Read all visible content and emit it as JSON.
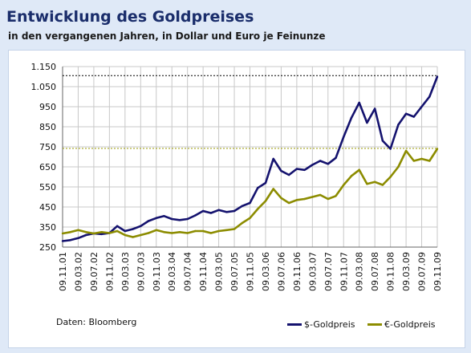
{
  "title": "Entwicklung des Goldpreises",
  "subtitle": "in den vergangenen Jahren, in Dollar und Euro je Feinunze",
  "source": "Daten: Bloomberg",
  "colors": {
    "usd": "#14126e",
    "eur": "#8c8c00",
    "grid": "#c8c8c8",
    "refUsd": "#000000",
    "refEur": "#9a9a00"
  },
  "chart_data": {
    "type": "line",
    "title": "Entwicklung des Goldpreises",
    "subtitle": "in den vergangenen Jahren, in Dollar und Euro je Feinunze",
    "ylim": [
      250,
      1150
    ],
    "yticks": [
      "250",
      "350",
      "450",
      "550",
      "650",
      "750",
      "850",
      "950",
      "1.050",
      "1.150"
    ],
    "ytick_values": [
      250,
      350,
      450,
      550,
      650,
      750,
      850,
      950,
      1050,
      1150
    ],
    "xticks": [
      "09.11.01",
      "09.03.02",
      "09.07.02",
      "09.11.02",
      "09.03.03",
      "09.07.03",
      "09.11.03",
      "09.03.04",
      "09.07.04",
      "09.11.04",
      "09.03.05",
      "09.07.05",
      "09.11.05",
      "09.03.06",
      "09.07.06",
      "09.11.06",
      "09.03.07",
      "09.07.07",
      "09.11.07",
      "09.03.08",
      "09.07.08",
      "09.11.08",
      "09.03.09",
      "09.07.09",
      "09.11.09"
    ],
    "grid": true,
    "legend": "bottom-right",
    "reference_lines": [
      {
        "series": "$-Goldpreis",
        "value": 1105,
        "style": "dotted"
      },
      {
        "series": "€-Goldpreis",
        "value": 742,
        "style": "dotted"
      }
    ],
    "series": [
      {
        "name": "$-Goldpreis",
        "x": [
          "09.11.01",
          "09.01.02",
          "09.03.02",
          "09.05.02",
          "09.07.02",
          "09.09.02",
          "09.11.02",
          "09.01.03",
          "09.03.03",
          "09.05.03",
          "09.07.03",
          "09.09.03",
          "09.11.03",
          "09.01.04",
          "09.03.04",
          "09.05.04",
          "09.07.04",
          "09.09.04",
          "09.11.04",
          "09.01.05",
          "09.03.05",
          "09.05.05",
          "09.07.05",
          "09.09.05",
          "09.11.05",
          "09.01.06",
          "09.03.06",
          "09.05.06",
          "09.07.06",
          "09.09.06",
          "09.11.06",
          "09.01.07",
          "09.03.07",
          "09.05.07",
          "09.07.07",
          "09.09.07",
          "09.11.07",
          "09.01.08",
          "09.03.08",
          "09.05.08",
          "09.07.08",
          "09.09.08",
          "09.11.08",
          "09.01.09",
          "09.03.09",
          "09.05.09",
          "09.07.09",
          "09.09.09",
          "09.11.09"
        ],
        "values": [
          280,
          285,
          295,
          310,
          318,
          315,
          320,
          355,
          330,
          340,
          355,
          380,
          395,
          405,
          390,
          385,
          390,
          408,
          430,
          420,
          435,
          425,
          430,
          455,
          470,
          545,
          570,
          690,
          630,
          610,
          640,
          635,
          660,
          680,
          665,
          695,
          800,
          895,
          970,
          870,
          940,
          780,
          740,
          860,
          915,
          900,
          950,
          1000,
          1100
        ]
      },
      {
        "name": "€-Goldpreis",
        "x": [
          "09.11.01",
          "09.01.02",
          "09.03.02",
          "09.05.02",
          "09.07.02",
          "09.09.02",
          "09.11.02",
          "09.01.03",
          "09.03.03",
          "09.05.03",
          "09.07.03",
          "09.09.03",
          "09.11.03",
          "09.01.04",
          "09.03.04",
          "09.05.04",
          "09.07.04",
          "09.09.04",
          "09.11.04",
          "09.01.05",
          "09.03.05",
          "09.05.05",
          "09.07.05",
          "09.09.05",
          "09.11.05",
          "09.01.06",
          "09.03.06",
          "09.05.06",
          "09.07.06",
          "09.09.06",
          "09.11.06",
          "09.01.07",
          "09.03.07",
          "09.05.07",
          "09.07.07",
          "09.09.07",
          "09.11.07",
          "09.01.08",
          "09.03.08",
          "09.05.08",
          "09.07.08",
          "09.09.08",
          "09.11.08",
          "09.01.09",
          "09.03.09",
          "09.05.09",
          "09.07.09",
          "09.09.09",
          "09.11.09"
        ],
        "values": [
          318,
          325,
          335,
          325,
          318,
          325,
          320,
          330,
          310,
          300,
          310,
          320,
          335,
          325,
          320,
          325,
          320,
          330,
          330,
          320,
          330,
          335,
          340,
          370,
          395,
          440,
          480,
          540,
          495,
          470,
          485,
          490,
          500,
          510,
          490,
          505,
          560,
          605,
          635,
          565,
          575,
          560,
          600,
          650,
          730,
          680,
          690,
          680,
          740
        ]
      }
    ]
  }
}
